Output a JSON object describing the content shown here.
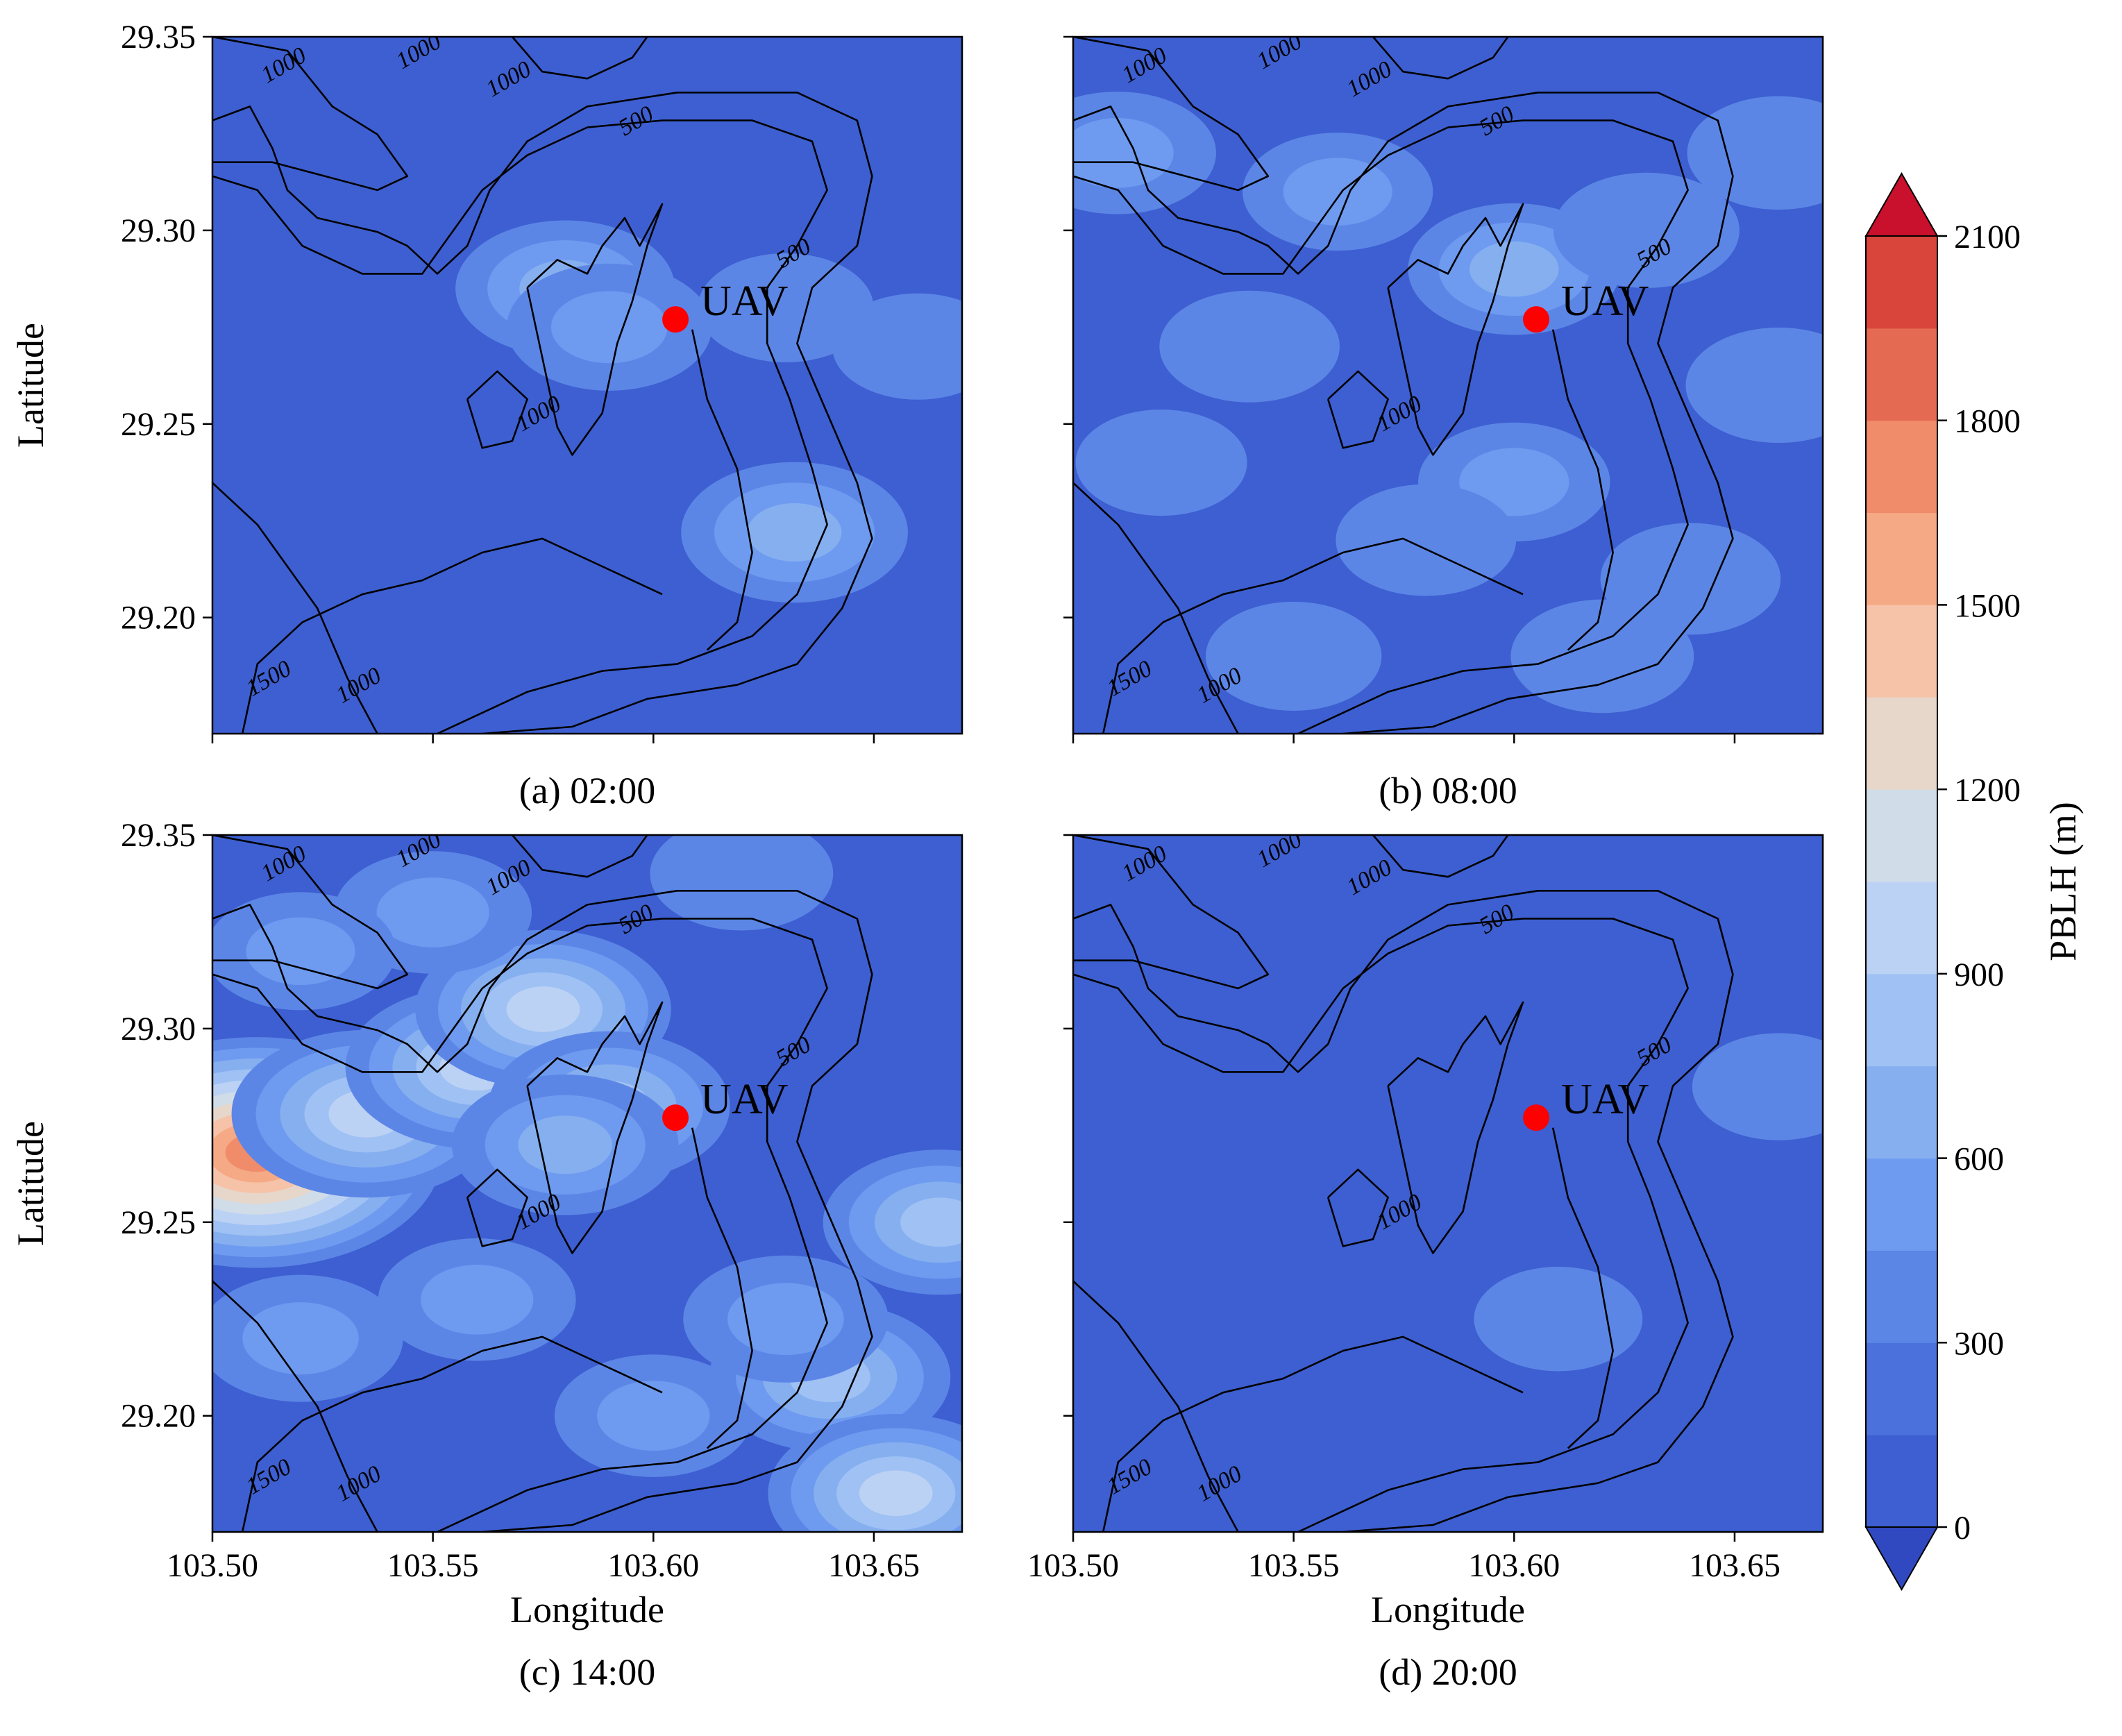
{
  "chart_data": {
    "type": "heatmap",
    "subtype": "filled-contour-map",
    "colorbar": {
      "label": "PBLH (m)",
      "ticks": [
        0,
        300,
        600,
        900,
        1200,
        1500,
        1800,
        2100
      ],
      "levels": [
        0,
        150,
        300,
        450,
        600,
        750,
        900,
        1050,
        1200,
        1350,
        1500,
        1650,
        1800,
        1950,
        2100
      ],
      "colors": [
        "#3049c0",
        "#3d5fd1",
        "#4b72dc",
        "#5c86e6",
        "#6e9bf0",
        "#86afef",
        "#a0c1f4",
        "#bcd2f4",
        "#d0dce8",
        "#e7d6ca",
        "#f6c3a8",
        "#f5a985",
        "#f08c6a",
        "#e56a52",
        "#d9453b",
        "#c9102c"
      ],
      "extend": "both"
    },
    "marker": {
      "label": "UAV",
      "lon": 103.605,
      "lat": 29.277,
      "color": "#ff0000"
    },
    "panels": [
      {
        "caption": "(a) 02:00",
        "xlabel": "",
        "ylabel": "Latitude",
        "xlim": [
          103.5,
          103.67
        ],
        "ylim": [
          29.17,
          29.35
        ],
        "xticks": [
          103.5,
          103.55,
          103.6,
          103.65
        ],
        "xticklabels": [],
        "yticks": [
          29.2,
          29.25,
          29.3,
          29.35
        ],
        "yticklabels": [
          "29.20",
          "29.25",
          "29.30",
          "29.35"
        ],
        "contour_labels": [
          "1000",
          "1000",
          "1000",
          "500",
          "500",
          "1000",
          "1500",
          "1000"
        ],
        "blobs": [
          {
            "lon": 103.58,
            "lat": 29.285,
            "value": 650
          },
          {
            "lon": 103.59,
            "lat": 29.275,
            "value": 550
          },
          {
            "lon": 103.632,
            "lat": 29.222,
            "value": 700
          },
          {
            "lon": 103.63,
            "lat": 29.28,
            "value": 350
          },
          {
            "lon": 103.66,
            "lat": 29.27,
            "value": 320
          },
          {
            "lon": 103.58,
            "lat": 29.335,
            "value": 280
          },
          {
            "lon": 103.5,
            "lat": 29.33,
            "value": 250
          },
          {
            "lon": 103.62,
            "lat": 29.18,
            "value": 260
          }
        ]
      },
      {
        "caption": "(b) 08:00",
        "xlabel": "",
        "ylabel": "",
        "xlim": [
          103.5,
          103.67
        ],
        "ylim": [
          29.17,
          29.35
        ],
        "xticks": [
          103.5,
          103.55,
          103.6,
          103.65
        ],
        "xticklabels": [],
        "yticks": [
          29.2,
          29.25,
          29.3,
          29.35
        ],
        "yticklabels": [],
        "contour_labels": [
          "1000",
          "1000",
          "1000",
          "500",
          "500",
          "1000",
          "1500",
          "1000"
        ],
        "blobs": [
          {
            "lon": 103.51,
            "lat": 29.32,
            "value": 500
          },
          {
            "lon": 103.56,
            "lat": 29.31,
            "value": 450
          },
          {
            "lon": 103.6,
            "lat": 29.29,
            "value": 600
          },
          {
            "lon": 103.63,
            "lat": 29.3,
            "value": 420
          },
          {
            "lon": 103.54,
            "lat": 29.27,
            "value": 380
          },
          {
            "lon": 103.6,
            "lat": 29.235,
            "value": 460
          },
          {
            "lon": 103.58,
            "lat": 29.22,
            "value": 380
          },
          {
            "lon": 103.64,
            "lat": 29.21,
            "value": 380
          },
          {
            "lon": 103.66,
            "lat": 29.26,
            "value": 420
          },
          {
            "lon": 103.52,
            "lat": 29.24,
            "value": 320
          },
          {
            "lon": 103.55,
            "lat": 29.19,
            "value": 350
          },
          {
            "lon": 103.62,
            "lat": 29.19,
            "value": 400
          },
          {
            "lon": 103.66,
            "lat": 29.32,
            "value": 400
          }
        ]
      },
      {
        "caption": "(c) 14:00",
        "xlabel": "Longitude",
        "ylabel": "Latitude",
        "xlim": [
          103.5,
          103.67
        ],
        "ylim": [
          29.17,
          29.35
        ],
        "xticks": [
          103.5,
          103.55,
          103.6,
          103.65
        ],
        "xticklabels": [
          "103.50",
          "103.55",
          "103.60",
          "103.65"
        ],
        "yticks": [
          29.2,
          29.25,
          29.3,
          29.35
        ],
        "yticklabels": [
          "29.20",
          "29.25",
          "29.30",
          "29.35"
        ],
        "contour_labels": [
          "1000",
          "1000",
          "1000",
          "500",
          "500",
          "1000",
          "1500",
          "1000"
        ],
        "blobs": [
          {
            "lon": 103.51,
            "lat": 29.268,
            "value": 1700
          },
          {
            "lon": 103.535,
            "lat": 29.278,
            "value": 1000
          },
          {
            "lon": 103.56,
            "lat": 29.29,
            "value": 950
          },
          {
            "lon": 103.575,
            "lat": 29.305,
            "value": 900
          },
          {
            "lon": 103.59,
            "lat": 29.28,
            "value": 800
          },
          {
            "lon": 103.58,
            "lat": 29.27,
            "value": 700
          },
          {
            "lon": 103.55,
            "lat": 29.33,
            "value": 500
          },
          {
            "lon": 103.52,
            "lat": 29.22,
            "value": 550
          },
          {
            "lon": 103.56,
            "lat": 29.23,
            "value": 500
          },
          {
            "lon": 103.6,
            "lat": 29.2,
            "value": 500
          },
          {
            "lon": 103.64,
            "lat": 29.21,
            "value": 800
          },
          {
            "lon": 103.655,
            "lat": 29.18,
            "value": 900
          },
          {
            "lon": 103.665,
            "lat": 29.25,
            "value": 750
          },
          {
            "lon": 103.63,
            "lat": 29.225,
            "value": 550
          },
          {
            "lon": 103.62,
            "lat": 29.34,
            "value": 400
          },
          {
            "lon": 103.52,
            "lat": 29.32,
            "value": 450
          }
        ]
      },
      {
        "caption": "(d) 20:00",
        "xlabel": "Longitude",
        "ylabel": "",
        "xlim": [
          103.5,
          103.67
        ],
        "ylim": [
          29.17,
          29.35
        ],
        "xticks": [
          103.5,
          103.55,
          103.6,
          103.65
        ],
        "xticklabels": [
          "103.50",
          "103.55",
          "103.60",
          "103.65"
        ],
        "yticks": [
          29.2,
          29.25,
          29.3,
          29.35
        ],
        "yticklabels": [],
        "contour_labels": [
          "1000",
          "1000",
          "1000",
          "500",
          "500",
          "1000",
          "1500",
          "1000"
        ],
        "blobs": [
          {
            "lon": 103.66,
            "lat": 29.285,
            "value": 330
          },
          {
            "lon": 103.61,
            "lat": 29.225,
            "value": 300
          },
          {
            "lon": 103.57,
            "lat": 29.24,
            "value": 260
          }
        ]
      }
    ]
  }
}
